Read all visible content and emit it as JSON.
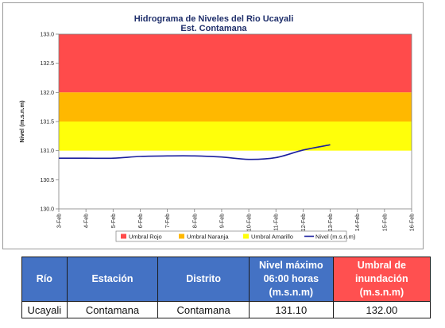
{
  "chart_data": {
    "type": "line",
    "title": "Hidrograma de Niveles del Rio Ucayali",
    "subtitle": "Est. Contamana",
    "ylabel": "Nivel (m.s.n.m)",
    "xlabel": "",
    "ylim": [
      130.0,
      133.0
    ],
    "y_ticks": [
      "130.0",
      "130.5",
      "131.0",
      "131.5",
      "132.0",
      "132.5",
      "133.0"
    ],
    "x_ticks": [
      "3-Feb",
      "4-Feb",
      "5-Feb",
      "6-Feb",
      "7-Feb",
      "8-Feb",
      "9-Feb",
      "10-Feb",
      "11-Feb",
      "12-Feb",
      "13-Feb",
      "14-Feb",
      "15-Feb",
      "16-Feb"
    ],
    "bands": [
      {
        "name": "Umbral Rojo",
        "from": 132.0,
        "to": 133.0,
        "color": "#ff4b4b"
      },
      {
        "name": "Umbral Naranja",
        "from": 131.5,
        "to": 132.0,
        "color": "#ffb800"
      },
      {
        "name": "Umbral Amarillo",
        "from": 131.0,
        "to": 131.5,
        "color": "#ffff0a"
      }
    ],
    "series": [
      {
        "name": "Nivel (m.s.n.m)",
        "color": "#1b1f9e",
        "x": [
          "3-Feb",
          "4-Feb",
          "5-Feb",
          "6-Feb",
          "7-Feb",
          "8-Feb",
          "9-Feb",
          "10-Feb",
          "11-Feb",
          "12-Feb",
          "13-Feb"
        ],
        "values": [
          130.87,
          130.87,
          130.87,
          130.9,
          130.91,
          130.91,
          130.89,
          130.85,
          130.88,
          131.01,
          131.1
        ]
      }
    ],
    "legend_position": "bottom",
    "grid": false
  },
  "table": {
    "headers": [
      "Río",
      "Estación",
      "Distrito",
      "Nivel máximo 06:00 horas (m.s.n.m)",
      "Umbral de inundación (m.s.n.m)"
    ],
    "header_colors": [
      "#4472c4",
      "#4472c4",
      "#4472c4",
      "#4472c4",
      "#ff5050"
    ],
    "rows": [
      [
        "Ucayali",
        "Contamana",
        "Contamana",
        "131.10",
        "132.00"
      ]
    ]
  }
}
